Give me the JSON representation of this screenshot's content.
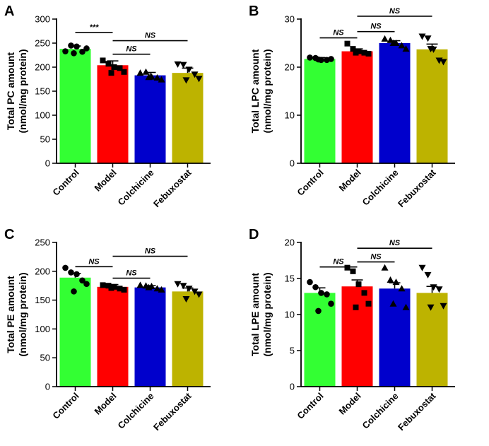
{
  "colors": [
    "#33ff33",
    "#ff0000",
    "#0000cc",
    "#bdb300"
  ],
  "chart_data": [
    {
      "type": "bar",
      "panel": "A",
      "ylabel_line1": "Total PC amount",
      "ylabel_line2": "(nmol/mg protein)",
      "categories": [
        "Control",
        "Model",
        "Colchicine",
        "Febuxostat"
      ],
      "values": [
        238,
        204,
        183,
        188
      ],
      "errors": [
        6,
        9,
        6,
        10
      ],
      "markers": [
        "circle",
        "square",
        "triangle",
        "triangle-down"
      ],
      "points": [
        [
          233,
          245,
          243,
          232,
          239,
          229
        ],
        [
          214,
          207,
          200,
          198,
          190,
          188
        ],
        [
          188,
          190,
          180,
          178,
          174,
          179
        ],
        [
          206,
          205,
          195,
          185,
          176,
          173
        ]
      ],
      "ylim": [
        0,
        300
      ],
      "yticks": [
        0,
        50,
        100,
        150,
        200,
        250,
        300
      ],
      "yticklabels": [
        "0",
        "50",
        "100",
        "150",
        "200",
        "250",
        "300"
      ],
      "comparisons": [
        {
          "from": 0,
          "to": 1,
          "label": "***",
          "y": 272
        },
        {
          "from": 1,
          "to": 2,
          "label": "NS",
          "y": 227
        },
        {
          "from": 1,
          "to": 3,
          "label": "NS",
          "y": 255
        }
      ]
    },
    {
      "type": "bar",
      "panel": "B",
      "ylabel_line1": "Total LPC amount",
      "ylabel_line2": "(nmol/mg protein)",
      "categories": [
        "Control",
        "Model",
        "Colchicine",
        "Febuxostat"
      ],
      "values": [
        21.7,
        23.3,
        25.0,
        23.7
      ],
      "errors": [
        0.3,
        0.5,
        0.5,
        1.1
      ],
      "markers": [
        "circle",
        "square",
        "triangle",
        "triangle-down"
      ],
      "points": [
        [
          22.0,
          21.9,
          21.5,
          21.5,
          21.7,
          21.6
        ],
        [
          24.9,
          23.8,
          23.3,
          23.0,
          22.8,
          23.0
        ],
        [
          25.9,
          25.6,
          25.0,
          24.5,
          23.8,
          25.0
        ],
        [
          26.4,
          26.0,
          23.7,
          21.4,
          21.1,
          23.8
        ]
      ],
      "ylim": [
        0,
        30
      ],
      "yticks": [
        0,
        10,
        20,
        30
      ],
      "yticklabels": [
        "0",
        "10",
        "20",
        "30"
      ],
      "comparisons": [
        {
          "from": 0,
          "to": 1,
          "label": "NS",
          "y": 26.1
        },
        {
          "from": 1,
          "to": 2,
          "label": "NS",
          "y": 27.4
        },
        {
          "from": 1,
          "to": 3,
          "label": "NS",
          "y": 30.6
        }
      ]
    },
    {
      "type": "bar",
      "panel": "C",
      "ylabel_line1": "Total PE amount",
      "ylabel_line2": "(nmol/mg protein)",
      "categories": [
        "Control",
        "Model",
        "Colchicine",
        "Febuxostat"
      ],
      "values": [
        189,
        173,
        172,
        165
      ],
      "errors": [
        7,
        4,
        3,
        6
      ],
      "markers": [
        "circle",
        "square",
        "triangle",
        "triangle-down"
      ],
      "points": [
        [
          206,
          198,
          195,
          184,
          178,
          165
        ],
        [
          176,
          175,
          173,
          170,
          168,
          171
        ],
        [
          176,
          175,
          174,
          170,
          168,
          172
        ],
        [
          178,
          175,
          170,
          165,
          160,
          152
        ]
      ],
      "ylim": [
        0,
        250
      ],
      "yticks": [
        0,
        50,
        100,
        150,
        200,
        250
      ],
      "yticklabels": [
        "0",
        "50",
        "100",
        "150",
        "200",
        "250"
      ],
      "comparisons": [
        {
          "from": 0,
          "to": 1,
          "label": "NS",
          "y": 208
        },
        {
          "from": 1,
          "to": 2,
          "label": "NS",
          "y": 188
        },
        {
          "from": 1,
          "to": 3,
          "label": "NS",
          "y": 226
        }
      ]
    },
    {
      "type": "bar",
      "panel": "D",
      "ylabel_line1": "Total LPE amount",
      "ylabel_line2": "(nmol/mg protein)",
      "categories": [
        "Control",
        "Model",
        "Colchicine",
        "Febuxostat"
      ],
      "values": [
        13.0,
        13.9,
        13.6,
        13.0
      ],
      "errors": [
        0.7,
        0.9,
        0.8,
        0.9
      ],
      "markers": [
        "circle",
        "square",
        "triangle",
        "triangle-down"
      ],
      "points": [
        [
          14.5,
          13.8,
          13.0,
          12.8,
          11.5,
          10.5
        ],
        [
          16.5,
          16.0,
          14.2,
          13.0,
          11.5,
          11.0
        ],
        [
          16.5,
          14.8,
          14.5,
          13.6,
          11.0,
          11.5
        ],
        [
          16.5,
          15.5,
          13.8,
          13.5,
          11.2,
          11.0
        ]
      ],
      "ylim": [
        0,
        20
      ],
      "yticks": [
        0,
        5,
        10,
        15,
        20
      ],
      "yticklabels": [
        "0",
        "5",
        "10",
        "15",
        "20"
      ],
      "comparisons": [
        {
          "from": 0,
          "to": 1,
          "label": "NS",
          "y": 16.6
        },
        {
          "from": 1,
          "to": 2,
          "label": "NS",
          "y": 17.3
        },
        {
          "from": 1,
          "to": 3,
          "label": "NS",
          "y": 19.2
        }
      ]
    }
  ]
}
